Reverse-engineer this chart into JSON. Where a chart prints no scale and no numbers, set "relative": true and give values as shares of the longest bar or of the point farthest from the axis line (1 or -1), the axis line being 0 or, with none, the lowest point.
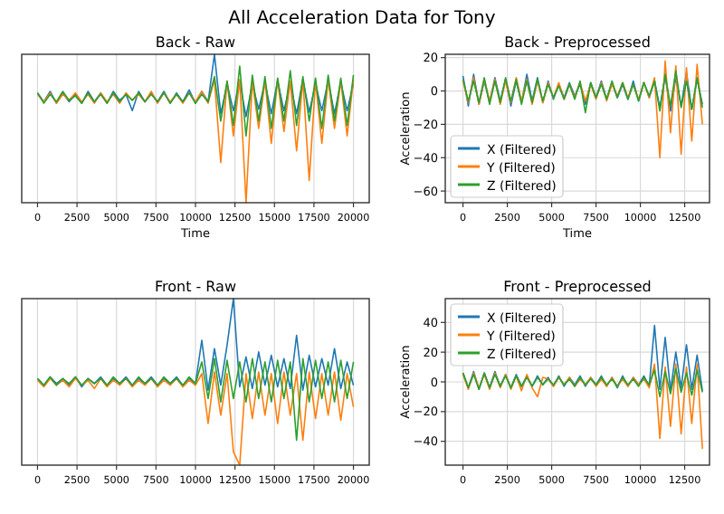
{
  "chart_data": [
    {
      "type": "line",
      "title": "Back - Raw",
      "xlabel": "Time",
      "annotations": [
        "All Acceleration Data for Tony"
      ],
      "relative": true,
      "tick_labels": "x",
      "grid": "x",
      "x": [
        0,
        400,
        800,
        1200,
        1600,
        2000,
        2400,
        2800,
        3200,
        3600,
        4000,
        4400,
        4800,
        5200,
        5600,
        6000,
        6400,
        6800,
        7200,
        7600,
        8000,
        8400,
        8800,
        9200,
        9600,
        10000,
        10400,
        10800,
        11200,
        11600,
        12000,
        12400,
        12800,
        13200,
        13600,
        14000,
        14400,
        14800,
        15200,
        15600,
        16000,
        16400,
        16800,
        17200,
        17600,
        18000,
        18400,
        18800,
        19200,
        19600,
        20000
      ],
      "xlim": [
        -1000,
        21000
      ],
      "xticks": [
        0,
        2500,
        5000,
        7500,
        10000,
        12500,
        15000,
        17500,
        20000
      ],
      "series": [
        {
          "color": "#1f77b4",
          "values": [
            0.74,
            0.68,
            0.75,
            0.67,
            0.74,
            0.68,
            0.73,
            0.67,
            0.75,
            0.68,
            0.74,
            0.67,
            0.75,
            0.69,
            0.73,
            0.62,
            0.75,
            0.68,
            0.74,
            0.68,
            0.75,
            0.67,
            0.74,
            0.68,
            0.76,
            0.67,
            0.75,
            0.68,
            1,
            0.6,
            0.8,
            0.62,
            0.82,
            0.58,
            0.8,
            0.63,
            0.81,
            0.6,
            0.82,
            0.62,
            0.8,
            0.6,
            0.83,
            0.61,
            0.8,
            0.62,
            0.82,
            0.6,
            0.81,
            0.62,
            0.8
          ]
        },
        {
          "color": "#ff7f0e",
          "values": [
            0.73,
            0.68,
            0.74,
            0.67,
            0.73,
            0.69,
            0.74,
            0.68,
            0.73,
            0.67,
            0.74,
            0.68,
            0.73,
            0.67,
            0.74,
            0.69,
            0.73,
            0.68,
            0.75,
            0.67,
            0.74,
            0.68,
            0.73,
            0.67,
            0.74,
            0.68,
            0.75,
            0.67,
            0.83,
            0.27,
            0.82,
            0.45,
            0.83,
            0,
            0.82,
            0.5,
            0.82,
            0.4,
            0.83,
            0.48,
            0.82,
            0.35,
            0.83,
            0.15,
            0.82,
            0.4,
            0.83,
            0.5,
            0.82,
            0.45,
            0.83
          ]
        },
        {
          "color": "#2ca02c",
          "values": [
            0.74,
            0.67,
            0.73,
            0.68,
            0.75,
            0.69,
            0.72,
            0.67,
            0.74,
            0.68,
            0.73,
            0.67,
            0.74,
            0.68,
            0.73,
            0.69,
            0.74,
            0.68,
            0.73,
            0.68,
            0.74,
            0.67,
            0.73,
            0.68,
            0.74,
            0.67,
            0.73,
            0.68,
            0.85,
            0.55,
            0.82,
            0.52,
            0.92,
            0.45,
            0.86,
            0.55,
            0.85,
            0.5,
            0.84,
            0.55,
            0.89,
            0.52,
            0.85,
            0.55,
            0.84,
            0.5,
            0.86,
            0.55,
            0.84,
            0.52,
            0.86
          ]
        }
      ]
    },
    {
      "type": "line",
      "title": "Back - Preprocessed",
      "xlabel": "Time",
      "ylabel": "Acceleration",
      "grid": true,
      "legend": "bottom left",
      "x": [
        0,
        300,
        600,
        900,
        1200,
        1500,
        1800,
        2100,
        2400,
        2700,
        3000,
        3300,
        3600,
        3900,
        4200,
        4500,
        4800,
        5100,
        5400,
        5700,
        6000,
        6300,
        6600,
        6900,
        7200,
        7500,
        7800,
        8100,
        8400,
        8700,
        9000,
        9300,
        9600,
        9900,
        10200,
        10500,
        10800,
        11100,
        11400,
        11700,
        12000,
        12300,
        12600,
        12900,
        13200,
        13500
      ],
      "xlim": [
        -1000,
        13900
      ],
      "xticks": [
        0,
        2500,
        5000,
        7500,
        10000,
        12500
      ],
      "ylim": [
        -67,
        22
      ],
      "yticks": [
        -60,
        -40,
        -20,
        0,
        20
      ],
      "series": [
        {
          "name": "X (Filtered)",
          "color": "#1f77b4",
          "values": [
            9,
            -9,
            10,
            -8,
            6,
            -7,
            8,
            -6,
            7,
            -9,
            6,
            -7,
            10,
            -6,
            8,
            -7,
            6,
            -5,
            4,
            -4,
            5,
            -3,
            4,
            -8,
            5,
            -4,
            6,
            -5,
            5,
            -4,
            4,
            -5,
            6,
            -6,
            5,
            -4,
            6,
            -10,
            9,
            -12,
            8,
            -9,
            11,
            -11,
            7,
            -8
          ]
        },
        {
          "name": "Y (Filtered)",
          "color": "#ff7f0e",
          "values": [
            6,
            -7,
            8,
            -8,
            7,
            -6,
            7,
            -8,
            6,
            -7,
            8,
            -6,
            7,
            -8,
            6,
            -7,
            5,
            -4,
            5,
            -5,
            4,
            -4,
            5,
            -6,
            4,
            -5,
            5,
            -6,
            4,
            -3,
            5,
            -4,
            4,
            -5,
            5,
            -4,
            8,
            -40,
            18,
            -25,
            15,
            -38,
            14,
            -30,
            16,
            -20
          ]
        },
        {
          "name": "Z (Filtered)",
          "color": "#2ca02c",
          "values": [
            7,
            -6,
            6,
            -7,
            8,
            -8,
            6,
            -7,
            8,
            -6,
            7,
            -8,
            6,
            -7,
            7,
            -6,
            4,
            -4,
            3,
            -5,
            4,
            -5,
            6,
            -13,
            5,
            -4,
            4,
            -5,
            6,
            -4,
            5,
            -5,
            4,
            -6,
            5,
            -3,
            6,
            -12,
            10,
            -9,
            12,
            -10,
            6,
            -11,
            8,
            -10
          ]
        }
      ]
    },
    {
      "type": "line",
      "title": "Front - Raw",
      "relative": true,
      "tick_labels": "x",
      "grid": "x",
      "x": [
        0,
        400,
        800,
        1200,
        1600,
        2000,
        2400,
        2800,
        3200,
        3600,
        4000,
        4400,
        4800,
        5200,
        5600,
        6000,
        6400,
        6800,
        7200,
        7600,
        8000,
        8400,
        8800,
        9200,
        9600,
        10000,
        10400,
        10800,
        11200,
        11600,
        12000,
        12400,
        12800,
        13200,
        13600,
        14000,
        14400,
        14800,
        15200,
        15600,
        16000,
        16400,
        16800,
        17200,
        17600,
        18000,
        18400,
        18800,
        19200,
        19600,
        20000
      ],
      "xlim": [
        -1000,
        21000
      ],
      "xticks": [
        0,
        2500,
        5000,
        7500,
        10000,
        12500,
        15000,
        17500,
        20000
      ],
      "series": [
        {
          "color": "#1f77b4",
          "values": [
            0.52,
            0.48,
            0.53,
            0.49,
            0.52,
            0.48,
            0.53,
            0.47,
            0.52,
            0.49,
            0.53,
            0.48,
            0.52,
            0.49,
            0.53,
            0.48,
            0.52,
            0.49,
            0.53,
            0.48,
            0.52,
            0.49,
            0.53,
            0.48,
            0.52,
            0.49,
            0.75,
            0.45,
            0.7,
            0.48,
            0.72,
            1,
            0.47,
            0.65,
            0.46,
            0.68,
            0.48,
            0.66,
            0.47,
            0.64,
            0.46,
            0.78,
            0.45,
            0.66,
            0.47,
            0.64,
            0.48,
            0.7,
            0.46,
            0.62,
            0.48
          ]
        },
        {
          "color": "#ff7f0e",
          "values": [
            0.51,
            0.47,
            0.52,
            0.48,
            0.51,
            0.47,
            0.52,
            0.48,
            0.51,
            0.46,
            0.52,
            0.47,
            0.51,
            0.48,
            0.52,
            0.47,
            0.51,
            0.48,
            0.52,
            0.47,
            0.51,
            0.48,
            0.52,
            0.47,
            0.51,
            0.48,
            0.55,
            0.25,
            0.56,
            0.3,
            0.55,
            0.08,
            0,
            0.55,
            0.28,
            0.56,
            0.3,
            0.55,
            0.25,
            0.56,
            0.3,
            0.55,
            0.15,
            0.56,
            0.28,
            0.55,
            0.3,
            0.56,
            0.27,
            0.55,
            0.35
          ]
        },
        {
          "color": "#2ca02c",
          "values": [
            0.52,
            0.48,
            0.53,
            0.48,
            0.52,
            0.49,
            0.53,
            0.48,
            0.52,
            0.49,
            0.52,
            0.48,
            0.53,
            0.49,
            0.52,
            0.48,
            0.53,
            0.49,
            0.52,
            0.48,
            0.53,
            0.49,
            0.52,
            0.48,
            0.53,
            0.49,
            0.62,
            0.4,
            0.64,
            0.38,
            0.63,
            0.4,
            0.62,
            0.38,
            0.64,
            0.4,
            0.62,
            0.38,
            0.63,
            0.4,
            0.62,
            0.15,
            0.64,
            0.38,
            0.63,
            0.4,
            0.62,
            0.38,
            0.63,
            0.4,
            0.62
          ]
        }
      ]
    },
    {
      "type": "line",
      "title": "Front - Preprocessed",
      "ylabel": "Acceleration",
      "grid": true,
      "legend": "top left",
      "x": [
        0,
        300,
        600,
        900,
        1200,
        1500,
        1800,
        2100,
        2400,
        2700,
        3000,
        3300,
        3600,
        3900,
        4200,
        4500,
        4800,
        5100,
        5400,
        5700,
        6000,
        6300,
        6600,
        6900,
        7200,
        7500,
        7800,
        8100,
        8400,
        8700,
        9000,
        9300,
        9600,
        9900,
        10200,
        10500,
        10800,
        11100,
        11400,
        11700,
        12000,
        12300,
        12600,
        12900,
        13200,
        13500
      ],
      "xlim": [
        -1000,
        13900
      ],
      "xticks": [
        0,
        2500,
        5000,
        7500,
        10000,
        12500
      ],
      "ylim": [
        -56,
        56
      ],
      "yticks": [
        -40,
        -20,
        0,
        20,
        40
      ],
      "series": [
        {
          "name": "X (Filtered)",
          "color": "#1f77b4",
          "values": [
            6,
            -4,
            7,
            -5,
            6,
            -4,
            7,
            -3,
            5,
            -4,
            5,
            -3,
            4,
            -3,
            4,
            -2,
            3,
            -3,
            4,
            -3,
            3,
            -2,
            4,
            -3,
            3,
            -2,
            4,
            -3,
            3,
            -4,
            4,
            -3,
            3,
            -2,
            4,
            -3,
            38,
            -5,
            30,
            -6,
            20,
            -4,
            25,
            -5,
            18,
            -6
          ]
        },
        {
          "name": "Y (Filtered)",
          "color": "#ff7f0e",
          "values": [
            5,
            -5,
            6,
            -4,
            5,
            -5,
            6,
            -4,
            5,
            -5,
            4,
            -6,
            5,
            -4,
            -10,
            3,
            2,
            -3,
            3,
            -2,
            3,
            -3,
            2,
            -2,
            3,
            -3,
            2,
            -3,
            3,
            -3,
            2,
            -3,
            3,
            -2,
            2,
            -4,
            12,
            -38,
            10,
            -30,
            12,
            -35,
            10,
            -28,
            12,
            -45
          ]
        },
        {
          "name": "Z (Filtered)",
          "color": "#2ca02c",
          "values": [
            6,
            -4,
            5,
            -5,
            6,
            -4,
            5,
            -3,
            4,
            -4,
            4,
            -3,
            3,
            -3,
            3,
            -2,
            2,
            -2,
            3,
            -2,
            2,
            -3,
            3,
            -2,
            2,
            -2,
            3,
            -2,
            2,
            -3,
            3,
            -2,
            2,
            -3,
            3,
            -2,
            8,
            -10,
            7,
            -8,
            9,
            -7,
            6,
            -9,
            8,
            -7
          ]
        }
      ]
    }
  ]
}
